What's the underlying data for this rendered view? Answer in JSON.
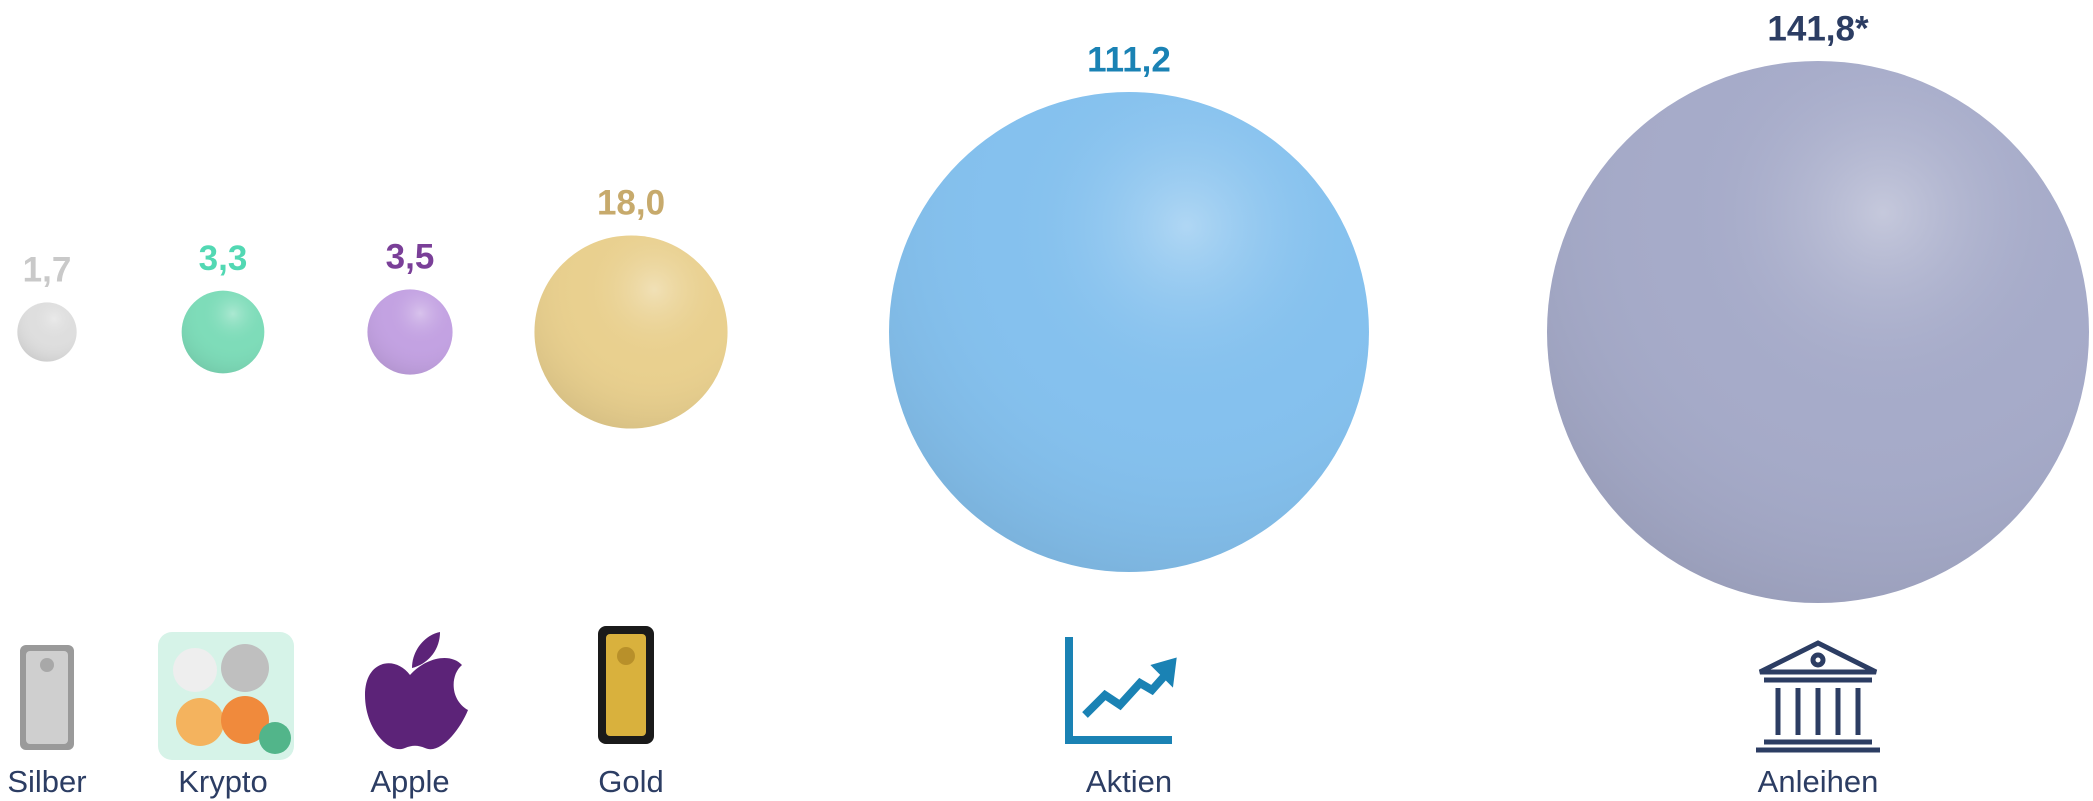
{
  "chart_data": {
    "type": "bubble",
    "categories": [
      "Silber",
      "Krypto",
      "Apple",
      "Gold",
      "Aktien",
      "Anleihen"
    ],
    "values": [
      1.7,
      3.3,
      3.5,
      18.0,
      111.2,
      141.8
    ],
    "value_labels": [
      "1,7",
      "3,3",
      "3,5",
      "18,0",
      "111,2",
      "141,8*"
    ],
    "colors": [
      "#dedede",
      "#7edcb9",
      "#c3a2e2",
      "#e9d08f",
      "#85c1ee",
      "#a6abc9"
    ],
    "label_colors": [
      "#c9c9c9",
      "#52d8b3",
      "#7a3f98",
      "#c7aa6c",
      "#1a82b4",
      "#2c3d63"
    ]
  }
}
